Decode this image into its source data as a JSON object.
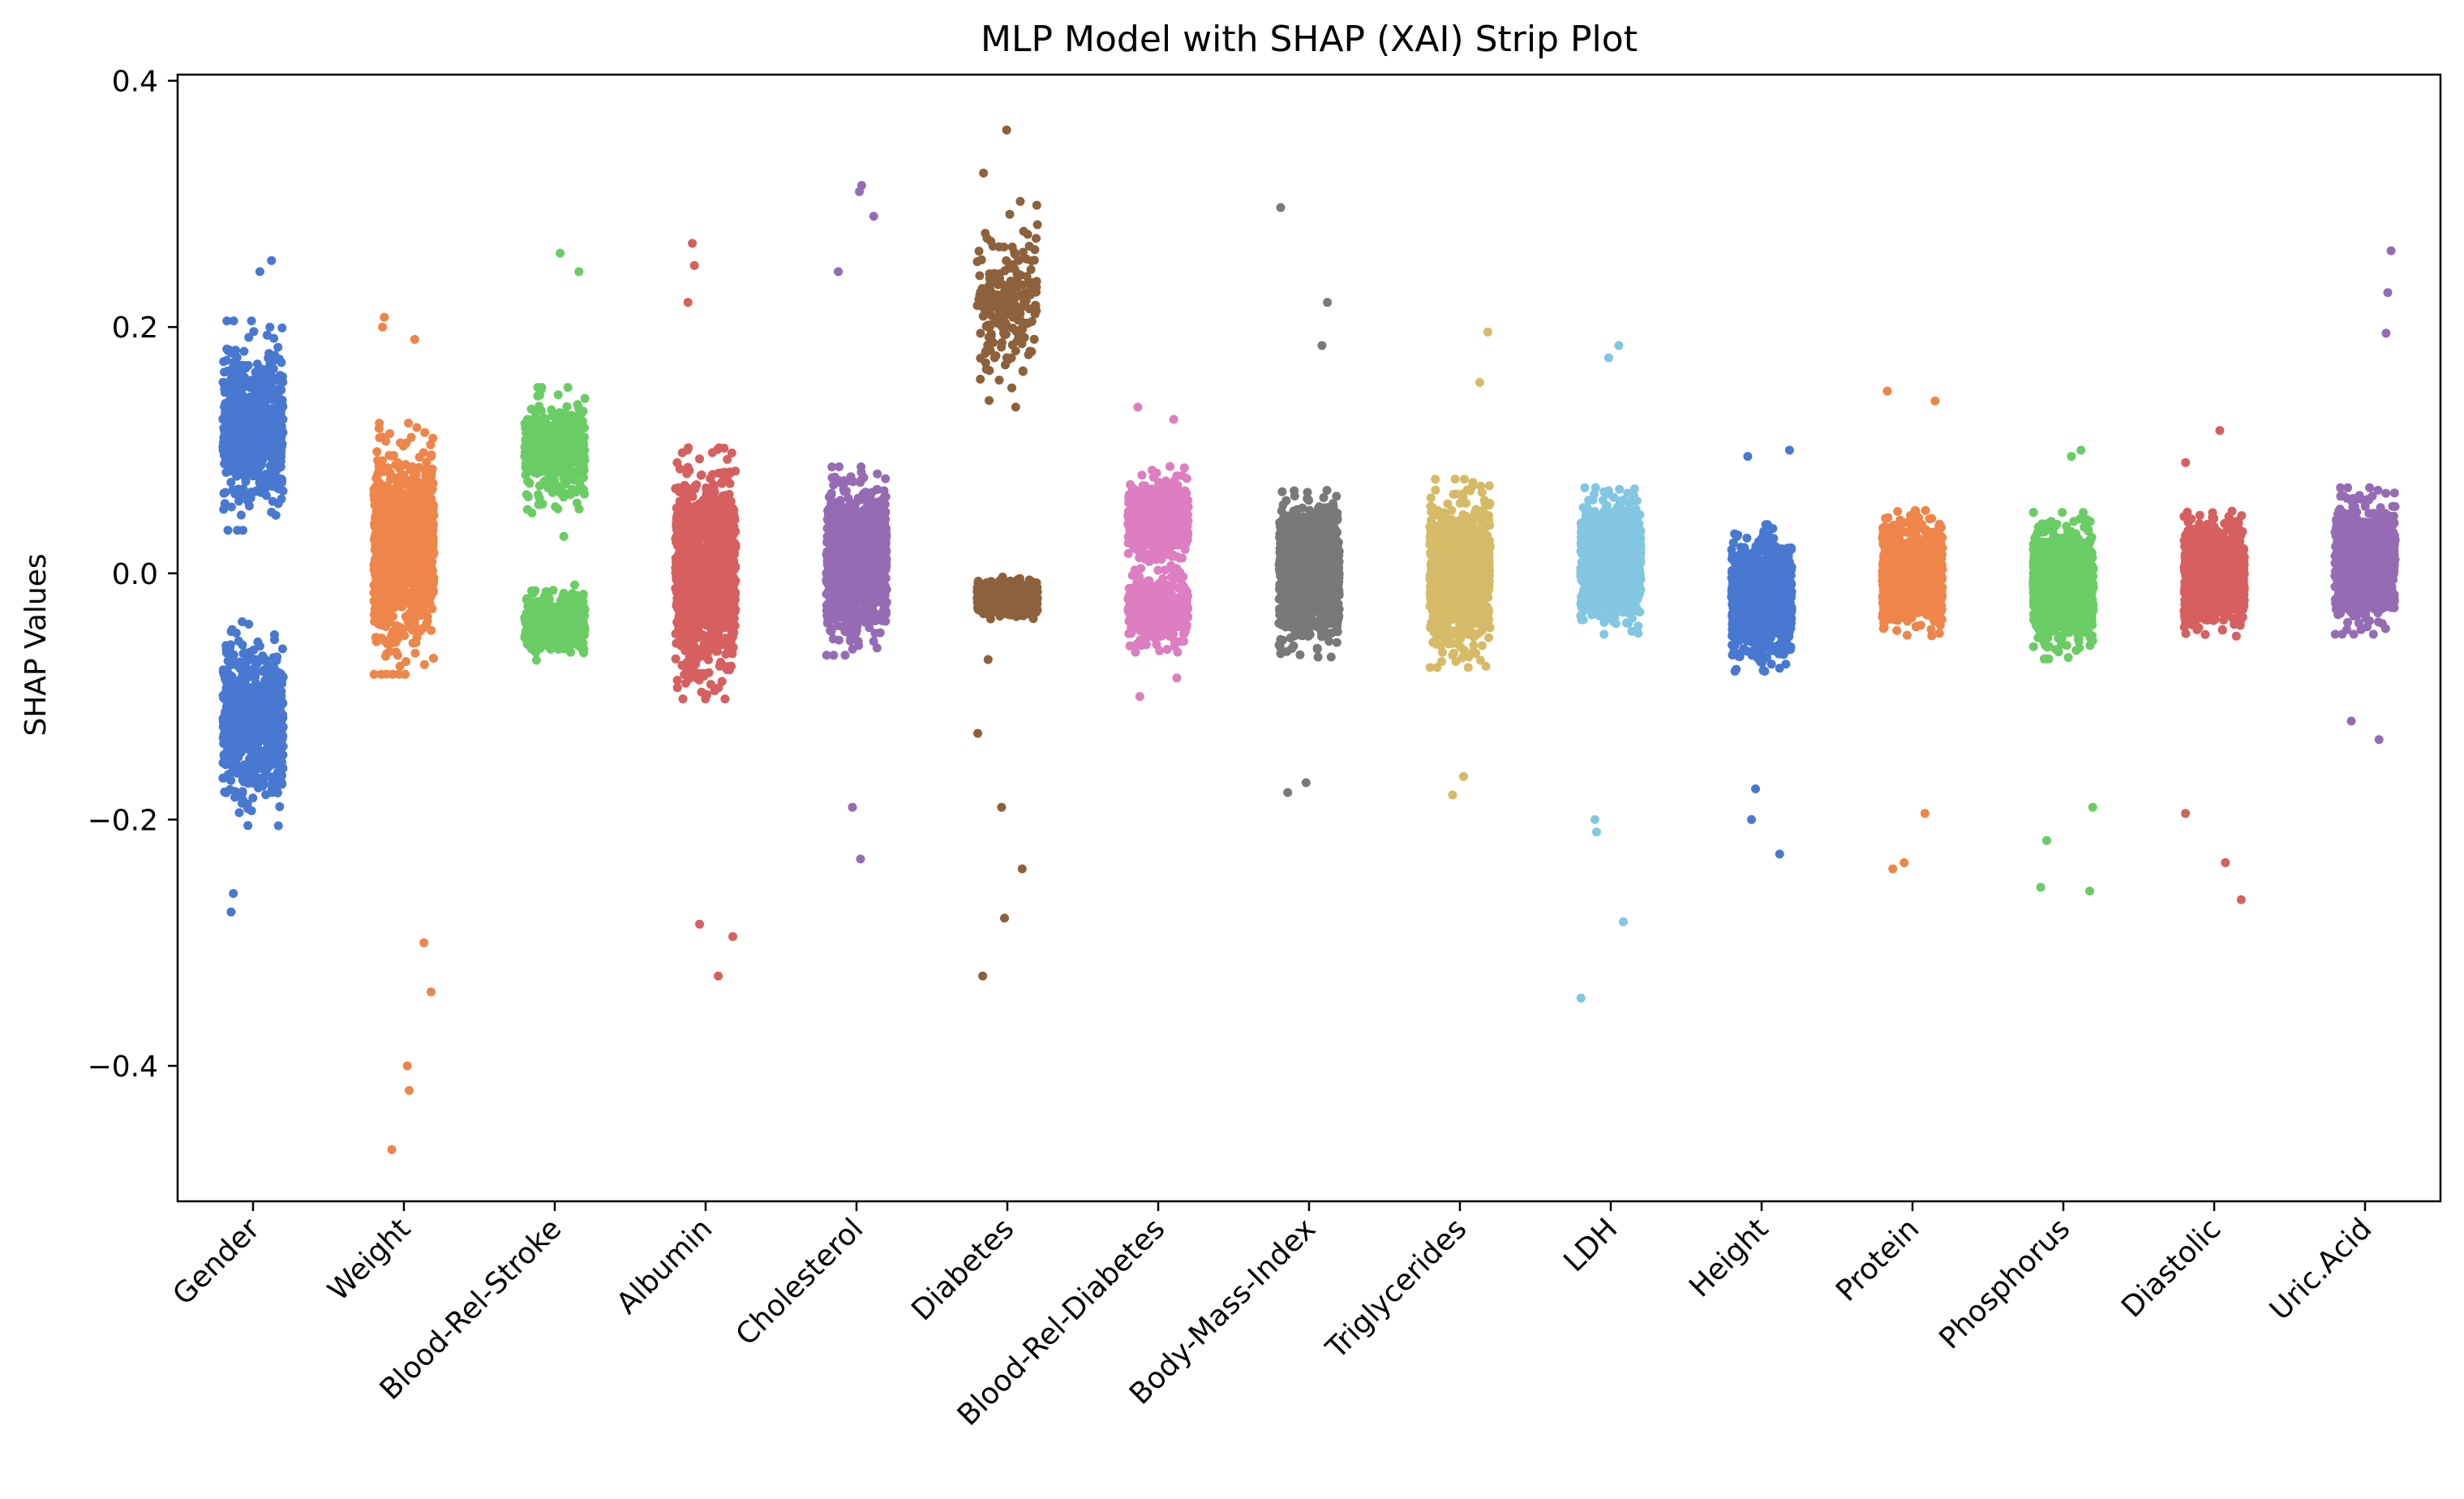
{
  "chart_data": {
    "type": "scatter",
    "subtype": "strip",
    "title": "MLP Model with SHAP (XAI) Strip Plot",
    "xlabel": "",
    "ylabel": "SHAP Values",
    "ylim": [
      -0.51,
      0.405
    ],
    "yticks": [
      {
        "value": 0.4,
        "label": "0.4"
      },
      {
        "value": 0.2,
        "label": "0.2"
      },
      {
        "value": 0.0,
        "label": "0.0"
      },
      {
        "value": -0.2,
        "label": "−0.2"
      },
      {
        "value": -0.4,
        "label": "−0.4"
      }
    ],
    "grid": false,
    "legend": "none",
    "categories": [
      "Gender",
      "Weight",
      "Blood-Rel-Stroke",
      "Albumin",
      "Cholesterol",
      "Diabetes",
      "Blood-Rel-Diabetes",
      "Body-Mass-Index",
      "Triglycerides",
      "LDH",
      "Height",
      "Protein",
      "Phosphorus",
      "Diastolic",
      "Uric.Acid"
    ],
    "series": [
      {
        "category": "Gender",
        "color": "#4878d0",
        "clusters": [
          {
            "center": 0.12,
            "spread": 0.05,
            "n": 700
          },
          {
            "center": -0.12,
            "spread": 0.05,
            "n": 700
          }
        ],
        "extremes": [
          0.254,
          0.245,
          -0.26,
          -0.275
        ]
      },
      {
        "category": "Weight",
        "color": "#ee854a",
        "clusters": [
          {
            "center": 0.02,
            "spread": 0.06,
            "n": 1100
          }
        ],
        "extremes": [
          0.208,
          0.2,
          0.19,
          -0.3,
          -0.34,
          -0.4,
          -0.42,
          -0.468
        ]
      },
      {
        "category": "Blood-Rel-Stroke",
        "color": "#6acc64",
        "clusters": [
          {
            "center": 0.1,
            "spread": 0.03,
            "n": 450
          },
          {
            "center": -0.04,
            "spread": 0.018,
            "n": 450
          }
        ],
        "extremes": [
          0.26,
          0.245,
          0.03
        ]
      },
      {
        "category": "Albumin",
        "color": "#d65f5f",
        "clusters": [
          {
            "center": 0.0,
            "spread": 0.06,
            "n": 1200
          }
        ],
        "extremes": [
          0.268,
          0.25,
          0.22,
          -0.285,
          -0.295,
          -0.327
        ]
      },
      {
        "category": "Cholesterol",
        "color": "#956cb4",
        "clusters": [
          {
            "center": 0.01,
            "spread": 0.045,
            "n": 1300
          }
        ],
        "extremes": [
          0.315,
          0.31,
          0.29,
          0.245,
          -0.19,
          -0.232
        ]
      },
      {
        "category": "Diabetes",
        "color": "#8c613c",
        "clusters": [
          {
            "center": 0.22,
            "spread": 0.05,
            "n": 220
          },
          {
            "center": -0.02,
            "spread": 0.01,
            "n": 700
          }
        ],
        "extremes": [
          0.36,
          0.325,
          -0.24,
          -0.28,
          -0.327,
          -0.07,
          -0.13,
          -0.19
        ]
      },
      {
        "category": "Blood-Rel-Diabetes",
        "color": "#dc7ec0",
        "clusters": [
          {
            "center": 0.045,
            "spread": 0.025,
            "n": 550
          },
          {
            "center": -0.03,
            "spread": 0.02,
            "n": 450
          }
        ],
        "extremes": [
          0.135,
          0.125,
          -0.1,
          -0.085
        ]
      },
      {
        "category": "Body-Mass-Index",
        "color": "#797979",
        "clusters": [
          {
            "center": 0.0,
            "spread": 0.04,
            "n": 1200
          }
        ],
        "extremes": [
          0.297,
          0.22,
          0.185,
          -0.17,
          -0.178
        ]
      },
      {
        "category": "Triglycerides",
        "color": "#d5bb67",
        "clusters": [
          {
            "center": 0.0,
            "spread": 0.045,
            "n": 1100
          }
        ],
        "extremes": [
          0.196,
          0.155,
          -0.165,
          -0.18
        ]
      },
      {
        "category": "LDH",
        "color": "#82c6e2",
        "clusters": [
          {
            "center": 0.01,
            "spread": 0.035,
            "n": 1100
          }
        ],
        "extremes": [
          0.185,
          0.175,
          -0.2,
          -0.21,
          -0.283,
          -0.345
        ]
      },
      {
        "category": "Height",
        "color": "#4878d0",
        "clusters": [
          {
            "center": -0.02,
            "spread": 0.035,
            "n": 1100
          }
        ],
        "extremes": [
          0.1,
          0.095,
          -0.2,
          -0.228,
          -0.175
        ]
      },
      {
        "category": "Protein",
        "color": "#ee854a",
        "clusters": [
          {
            "center": 0.0,
            "spread": 0.03,
            "n": 1100
          }
        ],
        "extremes": [
          0.148,
          0.14,
          -0.195,
          -0.235,
          -0.24
        ]
      },
      {
        "category": "Phosphorus",
        "color": "#6acc64",
        "clusters": [
          {
            "center": -0.01,
            "spread": 0.035,
            "n": 1100
          }
        ],
        "extremes": [
          0.1,
          0.095,
          -0.19,
          -0.217,
          -0.255,
          -0.258
        ]
      },
      {
        "category": "Diastolic",
        "color": "#d65f5f",
        "clusters": [
          {
            "center": 0.0,
            "spread": 0.03,
            "n": 1100
          }
        ],
        "extremes": [
          0.116,
          0.09,
          -0.195,
          -0.235,
          -0.265
        ]
      },
      {
        "category": "Uric.Acid",
        "color": "#956cb4",
        "clusters": [
          {
            "center": 0.01,
            "spread": 0.035,
            "n": 1000
          }
        ],
        "extremes": [
          0.262,
          0.228,
          0.195,
          -0.12,
          -0.135
        ]
      }
    ]
  }
}
